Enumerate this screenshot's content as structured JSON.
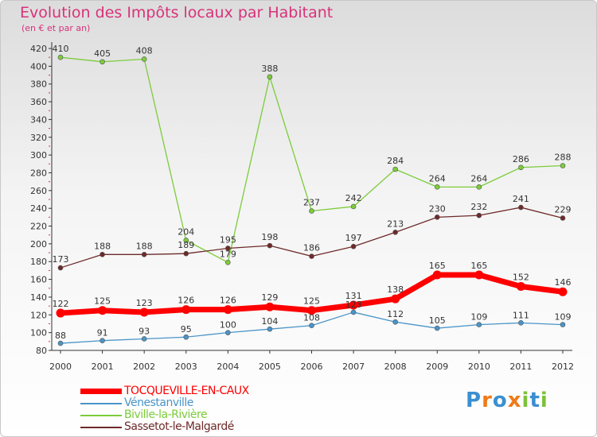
{
  "chart_data": {
    "type": "line",
    "title": "Evolution des Impôts locaux par Habitant",
    "subtitle": "(en € et par an)",
    "xlabel": "",
    "ylabel": "",
    "x": [
      "2000",
      "2001",
      "2002",
      "2003",
      "2004",
      "2005",
      "2006",
      "2007",
      "2008",
      "2009",
      "2010",
      "2011",
      "2012"
    ],
    "ylim": [
      80,
      420
    ],
    "yticks": [
      "80",
      "100",
      "120",
      "140",
      "160",
      "180",
      "200",
      "220",
      "240",
      "260",
      "280",
      "300",
      "320",
      "340",
      "360",
      "380",
      "400",
      "420"
    ],
    "grid": false,
    "legend_position": "bottom-left",
    "series": [
      {
        "name": "TOCQUEVILLE-EN-CAUX",
        "color": "#ff0000",
        "values": [
          122,
          125,
          123,
          126,
          126,
          129,
          125,
          131,
          138,
          165,
          165,
          152,
          146
        ]
      },
      {
        "name": "Vénestanville",
        "color": "#4a94c8",
        "values": [
          88,
          91,
          93,
          95,
          100,
          104,
          108,
          123,
          112,
          105,
          109,
          111,
          109
        ]
      },
      {
        "name": "Biville-la-Rivière",
        "color": "#7ccc3a",
        "values": [
          410,
          405,
          408,
          204,
          179,
          388,
          237,
          242,
          284,
          264,
          264,
          286,
          288
        ]
      },
      {
        "name": "Sassetot-le-Malgardé",
        "color": "#6e2a2a",
        "values": [
          173,
          188,
          188,
          189,
          195,
          198,
          186,
          197,
          213,
          230,
          232,
          241,
          229
        ]
      }
    ]
  },
  "logo": {
    "text": "Proxiti",
    "letters": [
      {
        "char": "P",
        "color": "#3a8fd0"
      },
      {
        "char": "r",
        "color": "#f07a18"
      },
      {
        "char": "o",
        "color": "#3a8fd0"
      },
      {
        "char": "x",
        "color": "#f07a18"
      },
      {
        "char": "i",
        "color": "#7cc23a"
      },
      {
        "char": "t",
        "color": "#3a8fd0"
      },
      {
        "char": "i",
        "color": "#7cc23a"
      }
    ]
  }
}
